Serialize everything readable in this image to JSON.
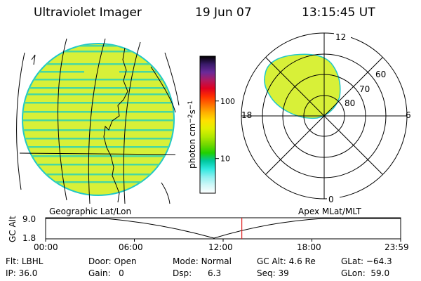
{
  "header": {
    "title": "Ultraviolet Imager",
    "date": "19 Jun 07",
    "time": "13:15:45 UT"
  },
  "colorbar": {
    "unit_label": "photon cm",
    "unit_exp1": "−2",
    "unit_s": "s",
    "unit_exp2": "−1",
    "ticks": [
      "100",
      "10"
    ],
    "tick_values": [
      100,
      10
    ],
    "range": [
      2.5,
      600
    ],
    "scale": "log",
    "colors_top_to_bottom": [
      "#000000",
      "#3a1a6a",
      "#6a2a9a",
      "#b01a60",
      "#e00020",
      "#ff3000",
      "#ff7000",
      "#ffb000",
      "#ffe000",
      "#e0f000",
      "#b0e800",
      "#70d800",
      "#20d000",
      "#00c8a0",
      "#30e8e0",
      "#90f0f0",
      "#d0f8f8",
      "#ffffff"
    ]
  },
  "geo_map": {
    "image_color": "#d8f038",
    "stripe_color": "#48d8a0",
    "border_color": "#20c8c8"
  },
  "polar_plot": {
    "labels": {
      "top": "12",
      "bottom": "0",
      "left": "18",
      "right": "6"
    },
    "lat_labels": [
      "60",
      "70",
      "80"
    ],
    "lat_rings": [
      60,
      70,
      80
    ],
    "image_color": "#d8f038"
  },
  "timeline": {
    "left_title": "Geographic Lat/Lon",
    "right_title": "Apex MLat/MLT",
    "y_axis_label": "GC Alt",
    "y_ticks": [
      "9.0",
      "1.8"
    ],
    "x_ticks": [
      "00:00",
      "06:00",
      "12:00",
      "18:00",
      "23:59"
    ],
    "marker_color": "#e02020",
    "marker_time": "13:15:45"
  },
  "status": {
    "row1": [
      {
        "label": "Flt:",
        "value": "LBHL"
      },
      {
        "label": "Door:",
        "value": "Open"
      },
      {
        "label": "Mode:",
        "value": "Normal"
      },
      {
        "label": "GC Alt:",
        "value": "4.6 Re"
      },
      {
        "label": "GLat:",
        "value": "−64.3"
      }
    ],
    "row2": [
      {
        "label": "IP:",
        "value": "36.0"
      },
      {
        "label": "Gain:",
        "value": "0"
      },
      {
        "label": "Dsp:",
        "value": "6.3"
      },
      {
        "label": "Seq:",
        "value": "39"
      },
      {
        "label": "GLon:",
        "value": "59.0"
      }
    ]
  }
}
